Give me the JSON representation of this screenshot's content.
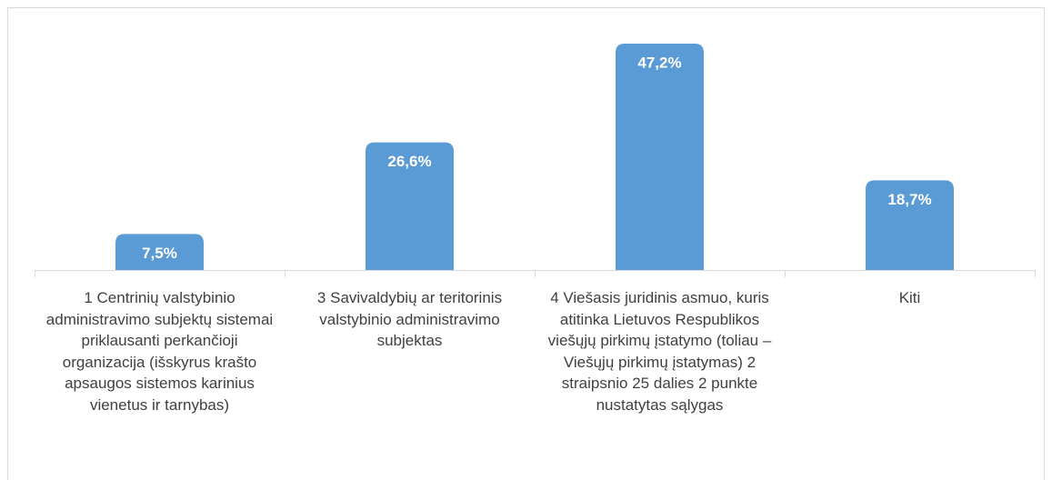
{
  "chart_data": {
    "type": "bar",
    "categories": [
      "1 Centrinių valstybinio administravimo subjektų sistemai priklausanti perkančioji organizacija (išskyrus krašto apsaugos sistemos karinius vienetus ir tarnybas)",
      "3 Savivaldybių ar teritorinis valstybinio administravimo subjektas",
      "4 Viešasis juridinis asmuo, kuris atitinka Lietuvos Respublikos viešųjų pirkimų įstatymo (toliau – Viešųjų pirkimų įstatymas) 2 straipsnio 25 dalies 2 punkte nustatytas sąlygas",
      "Kiti"
    ],
    "values": [
      7.5,
      26.6,
      47.2,
      18.7
    ],
    "value_labels": [
      "7,5%",
      "26,6%",
      "47,2%",
      "18,7%"
    ],
    "color": "#5b9bd5"
  }
}
